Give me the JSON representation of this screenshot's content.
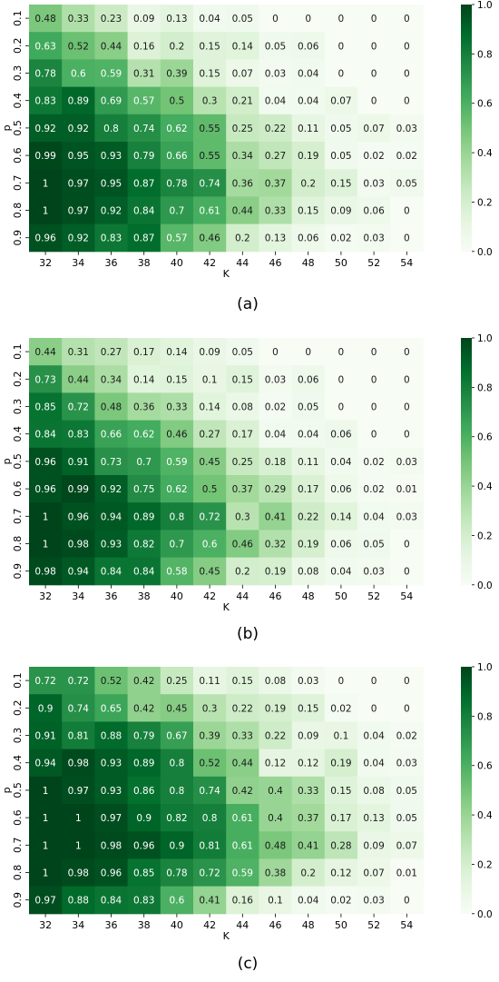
{
  "chart_data": [
    {
      "type": "heatmap",
      "panel_label": "(a)",
      "xlabel": "K",
      "ylabel": "p",
      "x": [
        "32",
        "34",
        "36",
        "38",
        "40",
        "42",
        "44",
        "46",
        "48",
        "50",
        "52",
        "54"
      ],
      "y": [
        "0.1",
        "0.2",
        "0.3",
        "0.4",
        "0.5",
        "0.6",
        "0.7",
        "0.8",
        "0.9"
      ],
      "values": [
        [
          0.48,
          0.33,
          0.23,
          0.09,
          0.13,
          0.04,
          0.05,
          0,
          0,
          0,
          0,
          0
        ],
        [
          0.63,
          0.52,
          0.44,
          0.16,
          0.2,
          0.15,
          0.14,
          0.05,
          0.06,
          0,
          0,
          0
        ],
        [
          0.78,
          0.6,
          0.59,
          0.31,
          0.39,
          0.15,
          0.07,
          0.03,
          0.04,
          0,
          0,
          0
        ],
        [
          0.83,
          0.89,
          0.69,
          0.57,
          0.5,
          0.3,
          0.21,
          0.04,
          0.04,
          0.07,
          0,
          0
        ],
        [
          0.92,
          0.92,
          0.8,
          0.74,
          0.62,
          0.55,
          0.25,
          0.22,
          0.11,
          0.05,
          0.07,
          0.03
        ],
        [
          0.99,
          0.95,
          0.93,
          0.79,
          0.66,
          0.55,
          0.34,
          0.27,
          0.19,
          0.05,
          0.02,
          0.02
        ],
        [
          1,
          0.97,
          0.95,
          0.87,
          0.78,
          0.74,
          0.36,
          0.37,
          0.2,
          0.15,
          0.03,
          0.05
        ],
        [
          1,
          0.97,
          0.92,
          0.84,
          0.7,
          0.61,
          0.44,
          0.33,
          0.15,
          0.09,
          0.06,
          0
        ],
        [
          0.96,
          0.92,
          0.83,
          0.87,
          0.57,
          0.46,
          0.2,
          0.13,
          0.06,
          0.02,
          0.03,
          0
        ]
      ],
      "colorbar": {
        "min": 0,
        "max": 1,
        "ticks": [
          "0.0",
          "0.2",
          "0.4",
          "0.6",
          "0.8",
          "1.0"
        ]
      }
    },
    {
      "type": "heatmap",
      "panel_label": "(b)",
      "xlabel": "K",
      "ylabel": "p",
      "x": [
        "32",
        "34",
        "36",
        "38",
        "40",
        "42",
        "44",
        "46",
        "48",
        "50",
        "52",
        "54"
      ],
      "y": [
        "0.1",
        "0.2",
        "0.3",
        "0.4",
        "0.5",
        "0.6",
        "0.7",
        "0.8",
        "0.9"
      ],
      "values": [
        [
          0.44,
          0.31,
          0.27,
          0.17,
          0.14,
          0.09,
          0.05,
          0,
          0,
          0,
          0,
          0
        ],
        [
          0.73,
          0.44,
          0.34,
          0.14,
          0.15,
          0.1,
          0.15,
          0.03,
          0.06,
          0,
          0,
          0
        ],
        [
          0.85,
          0.72,
          0.48,
          0.36,
          0.33,
          0.14,
          0.08,
          0.02,
          0.05,
          0,
          0,
          0
        ],
        [
          0.84,
          0.83,
          0.66,
          0.62,
          0.46,
          0.27,
          0.17,
          0.04,
          0.04,
          0.06,
          0,
          0
        ],
        [
          0.96,
          0.91,
          0.73,
          0.7,
          0.59,
          0.45,
          0.25,
          0.18,
          0.11,
          0.04,
          0.02,
          0.03
        ],
        [
          0.96,
          0.99,
          0.92,
          0.75,
          0.62,
          0.5,
          0.37,
          0.29,
          0.17,
          0.06,
          0.02,
          0.01
        ],
        [
          1,
          0.96,
          0.94,
          0.89,
          0.8,
          0.72,
          0.3,
          0.41,
          0.22,
          0.14,
          0.04,
          0.03
        ],
        [
          1,
          0.98,
          0.93,
          0.82,
          0.7,
          0.6,
          0.46,
          0.32,
          0.19,
          0.06,
          0.05,
          0
        ],
        [
          0.98,
          0.94,
          0.84,
          0.84,
          0.58,
          0.45,
          0.2,
          0.19,
          0.08,
          0.04,
          0.03,
          0
        ]
      ],
      "colorbar": {
        "min": 0,
        "max": 1,
        "ticks": [
          "0.0",
          "0.2",
          "0.4",
          "0.6",
          "0.8",
          "1.0"
        ]
      }
    },
    {
      "type": "heatmap",
      "panel_label": "(c)",
      "xlabel": "K",
      "ylabel": "p",
      "x": [
        "32",
        "34",
        "36",
        "38",
        "40",
        "42",
        "44",
        "46",
        "48",
        "50",
        "52",
        "54"
      ],
      "y": [
        "0.1",
        "0.2",
        "0.3",
        "0.4",
        "0.5",
        "0.6",
        "0.7",
        "0.8",
        "0.9"
      ],
      "values": [
        [
          0.72,
          0.72,
          0.52,
          0.42,
          0.25,
          0.11,
          0.15,
          0.08,
          0.03,
          0,
          0,
          0
        ],
        [
          0.9,
          0.74,
          0.65,
          0.42,
          0.45,
          0.3,
          0.22,
          0.19,
          0.15,
          0.02,
          0,
          0
        ],
        [
          0.91,
          0.81,
          0.88,
          0.79,
          0.67,
          0.39,
          0.33,
          0.22,
          0.09,
          0.1,
          0.04,
          0.02
        ],
        [
          0.94,
          0.98,
          0.93,
          0.89,
          0.8,
          0.52,
          0.44,
          0.12,
          0.12,
          0.19,
          0.04,
          0.03
        ],
        [
          1,
          0.97,
          0.93,
          0.86,
          0.8,
          0.74,
          0.42,
          0.4,
          0.33,
          0.15,
          0.08,
          0.05
        ],
        [
          1,
          1,
          0.97,
          0.9,
          0.82,
          0.8,
          0.61,
          0.4,
          0.37,
          0.17,
          0.13,
          0.05
        ],
        [
          1,
          1,
          0.98,
          0.96,
          0.9,
          0.81,
          0.61,
          0.48,
          0.41,
          0.28,
          0.09,
          0.07
        ],
        [
          1,
          0.98,
          0.96,
          0.85,
          0.78,
          0.72,
          0.59,
          0.38,
          0.2,
          0.12,
          0.07,
          0.01
        ],
        [
          0.97,
          0.88,
          0.84,
          0.83,
          0.6,
          0.41,
          0.16,
          0.1,
          0.04,
          0.02,
          0.03,
          0
        ]
      ],
      "colorbar": {
        "min": 0,
        "max": 1,
        "ticks": [
          "0.0",
          "0.2",
          "0.4",
          "0.6",
          "0.8",
          "1.0"
        ]
      }
    }
  ],
  "colors": {
    "low": "#f7fcf5",
    "mid": "#74c476",
    "high": "#00441b"
  }
}
